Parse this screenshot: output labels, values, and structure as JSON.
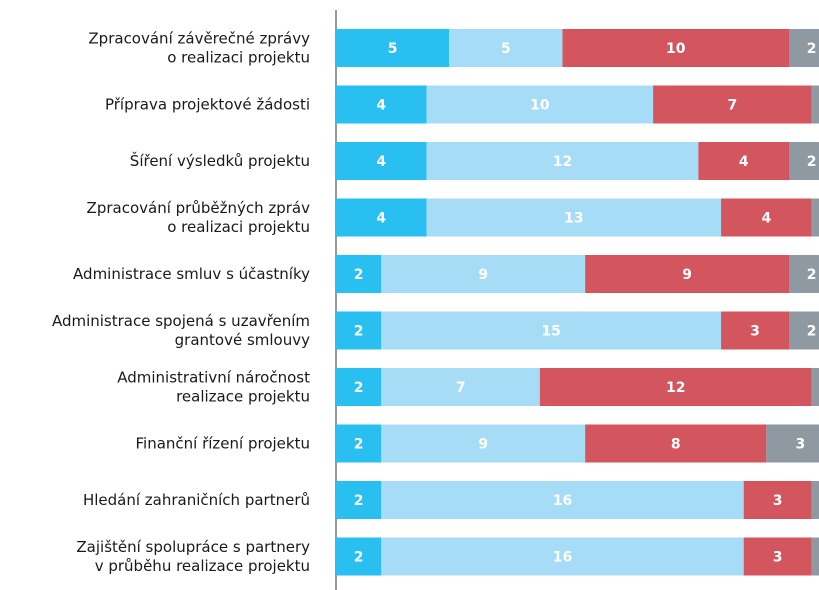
{
  "chart_data": {
    "type": "bar",
    "orientation": "horizontal",
    "stacked": true,
    "categories": [
      "Zpracování závěrečné zprávy\no realizaci projektu",
      "Příprava projektové žádosti",
      "Šíření výsledků projektu",
      "Zpracování průběžných zpráv\no realizaci projektu",
      "Administrace smluv s účastníky",
      "Administrace spojená s uzavřením\ngrantové smlouvy",
      "Administrativní náročnost\nrealizace projektu",
      "Finanční řízení projektu",
      "Hledání zahraničních partnerů",
      "Zajištění spolupráce s partnery\nv průběhu realizace projektu"
    ],
    "series": [
      {
        "color": "#29bff0",
        "values": [
          5,
          4,
          4,
          4,
          2,
          2,
          2,
          2,
          2,
          2
        ]
      },
      {
        "color": "#a7dcf6",
        "values": [
          5,
          10,
          12,
          13,
          9,
          15,
          7,
          9,
          16,
          16
        ]
      },
      {
        "color": "#d3555e",
        "values": [
          10,
          7,
          4,
          4,
          9,
          3,
          12,
          8,
          3,
          3
        ]
      },
      {
        "color": "#8e99a2",
        "values": [
          2,
          1,
          2,
          1,
          2,
          2,
          1,
          3,
          1,
          1
        ]
      }
    ]
  }
}
